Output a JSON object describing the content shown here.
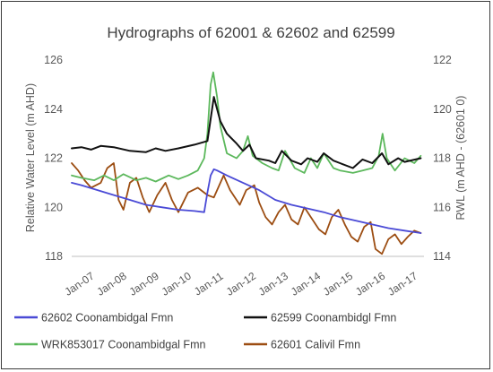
{
  "chart_data": {
    "type": "line",
    "title": "Hydrographs of 62001 & 62602 and 62599",
    "ylabel": "Relative Water Level (m AHD)",
    "y2label": "RWL (m AHD - (62601 0)",
    "ylim": [
      118,
      126
    ],
    "y2lim": [
      114,
      122
    ],
    "yticks": [
      "118",
      "120",
      "122",
      "124",
      "126"
    ],
    "y2ticks": [
      "114",
      "116",
      "118",
      "120",
      "122"
    ],
    "x_categories": [
      "Jan-07",
      "Jan-08",
      "Jan-09",
      "Jan-10",
      "Jan-11",
      "Jan-12",
      "Jan-13",
      "Jan-14",
      "Jan-15",
      "Jan-16",
      "Jan-17"
    ],
    "x_range": [
      2006.7,
      2017.6
    ],
    "grid": false,
    "legend_position": "bottom",
    "series": [
      {
        "name": "62602 Coonambidgal Fmn",
        "axis": "left",
        "color": "#4a4ad6",
        "points": [
          [
            2006.7,
            121.0
          ],
          [
            2007.0,
            120.9
          ],
          [
            2007.5,
            120.7
          ],
          [
            2008.0,
            120.5
          ],
          [
            2008.5,
            120.3
          ],
          [
            2009.0,
            120.1
          ],
          [
            2009.5,
            120.0
          ],
          [
            2010.0,
            119.9
          ],
          [
            2010.5,
            119.85
          ],
          [
            2010.8,
            119.8
          ],
          [
            2010.9,
            120.6
          ],
          [
            2011.0,
            121.3
          ],
          [
            2011.1,
            121.55
          ],
          [
            2011.2,
            121.5
          ],
          [
            2011.5,
            121.3
          ],
          [
            2012.0,
            121.0
          ],
          [
            2012.5,
            120.7
          ],
          [
            2013.0,
            120.3
          ],
          [
            2013.5,
            120.1
          ],
          [
            2014.0,
            119.95
          ],
          [
            2014.5,
            119.8
          ],
          [
            2015.0,
            119.6
          ],
          [
            2015.5,
            119.45
          ],
          [
            2016.0,
            119.3
          ],
          [
            2016.5,
            119.15
          ],
          [
            2017.0,
            119.05
          ],
          [
            2017.5,
            118.95
          ]
        ]
      },
      {
        "name": "62599 Coonambidgl Fmn",
        "axis": "left",
        "color": "#111111",
        "points": [
          [
            2006.7,
            122.4
          ],
          [
            2007.0,
            122.45
          ],
          [
            2007.3,
            122.35
          ],
          [
            2007.6,
            122.5
          ],
          [
            2008.0,
            122.45
          ],
          [
            2008.5,
            122.3
          ],
          [
            2009.0,
            122.25
          ],
          [
            2009.3,
            122.4
          ],
          [
            2009.6,
            122.3
          ],
          [
            2010.0,
            122.4
          ],
          [
            2010.5,
            122.55
          ],
          [
            2010.9,
            122.7
          ],
          [
            2011.0,
            123.6
          ],
          [
            2011.1,
            124.5
          ],
          [
            2011.2,
            124.0
          ],
          [
            2011.3,
            123.5
          ],
          [
            2011.5,
            123.0
          ],
          [
            2011.8,
            122.6
          ],
          [
            2012.0,
            122.3
          ],
          [
            2012.2,
            122.55
          ],
          [
            2012.4,
            122.0
          ],
          [
            2012.8,
            121.9
          ],
          [
            2013.0,
            121.8
          ],
          [
            2013.2,
            122.3
          ],
          [
            2013.5,
            121.9
          ],
          [
            2013.8,
            121.75
          ],
          [
            2014.0,
            122.0
          ],
          [
            2014.3,
            121.85
          ],
          [
            2014.5,
            122.2
          ],
          [
            2014.8,
            121.9
          ],
          [
            2015.0,
            121.8
          ],
          [
            2015.4,
            121.6
          ],
          [
            2015.7,
            121.95
          ],
          [
            2016.0,
            121.8
          ],
          [
            2016.3,
            122.2
          ],
          [
            2016.5,
            121.75
          ],
          [
            2016.8,
            122.0
          ],
          [
            2017.0,
            121.85
          ],
          [
            2017.5,
            122.0
          ]
        ]
      },
      {
        "name": "WRK853017 Coonambidgal Fmn",
        "axis": "left",
        "color": "#5cb85c",
        "points": [
          [
            2006.7,
            121.3
          ],
          [
            2007.0,
            121.2
          ],
          [
            2007.4,
            121.1
          ],
          [
            2007.7,
            121.3
          ],
          [
            2008.0,
            121.1
          ],
          [
            2008.3,
            121.35
          ],
          [
            2008.7,
            121.1
          ],
          [
            2009.0,
            121.2
          ],
          [
            2009.3,
            121.05
          ],
          [
            2009.7,
            121.3
          ],
          [
            2010.0,
            121.15
          ],
          [
            2010.3,
            121.3
          ],
          [
            2010.6,
            121.5
          ],
          [
            2010.8,
            122.0
          ],
          [
            2010.9,
            123.0
          ],
          [
            2011.0,
            125.0
          ],
          [
            2011.08,
            125.5
          ],
          [
            2011.2,
            124.5
          ],
          [
            2011.3,
            123.3
          ],
          [
            2011.5,
            122.2
          ],
          [
            2011.8,
            122.0
          ],
          [
            2012.0,
            122.3
          ],
          [
            2012.15,
            122.9
          ],
          [
            2012.3,
            122.1
          ],
          [
            2012.6,
            121.8
          ],
          [
            2012.9,
            121.6
          ],
          [
            2013.1,
            121.5
          ],
          [
            2013.3,
            122.3
          ],
          [
            2013.6,
            121.6
          ],
          [
            2013.9,
            121.4
          ],
          [
            2014.1,
            122.0
          ],
          [
            2014.3,
            121.6
          ],
          [
            2014.5,
            122.2
          ],
          [
            2014.8,
            121.6
          ],
          [
            2015.0,
            121.5
          ],
          [
            2015.4,
            121.4
          ],
          [
            2015.7,
            121.5
          ],
          [
            2016.0,
            121.6
          ],
          [
            2016.2,
            122.1
          ],
          [
            2016.32,
            123.0
          ],
          [
            2016.45,
            122.0
          ],
          [
            2016.7,
            121.5
          ],
          [
            2017.0,
            122.0
          ],
          [
            2017.3,
            121.8
          ],
          [
            2017.5,
            122.1
          ]
        ]
      },
      {
        "name": "62601 Calivil Fmn",
        "axis": "right",
        "color": "#9c4d12",
        "points": [
          [
            2006.7,
            117.8
          ],
          [
            2006.9,
            117.5
          ],
          [
            2007.1,
            117.1
          ],
          [
            2007.3,
            116.8
          ],
          [
            2007.6,
            117.0
          ],
          [
            2007.8,
            117.6
          ],
          [
            2008.0,
            117.8
          ],
          [
            2008.15,
            116.3
          ],
          [
            2008.3,
            115.9
          ],
          [
            2008.5,
            117.0
          ],
          [
            2008.7,
            117.2
          ],
          [
            2008.9,
            116.4
          ],
          [
            2009.1,
            115.8
          ],
          [
            2009.35,
            116.5
          ],
          [
            2009.6,
            117.0
          ],
          [
            2009.8,
            116.3
          ],
          [
            2010.0,
            115.8
          ],
          [
            2010.3,
            116.6
          ],
          [
            2010.6,
            116.8
          ],
          [
            2010.9,
            116.5
          ],
          [
            2011.1,
            116.4
          ],
          [
            2011.4,
            117.3
          ],
          [
            2011.6,
            116.7
          ],
          [
            2011.9,
            116.1
          ],
          [
            2012.1,
            116.7
          ],
          [
            2012.35,
            116.9
          ],
          [
            2012.5,
            116.2
          ],
          [
            2012.7,
            115.6
          ],
          [
            2012.9,
            115.3
          ],
          [
            2013.1,
            115.8
          ],
          [
            2013.3,
            116.1
          ],
          [
            2013.5,
            115.5
          ],
          [
            2013.7,
            115.3
          ],
          [
            2013.9,
            116.0
          ],
          [
            2014.1,
            115.6
          ],
          [
            2014.35,
            115.1
          ],
          [
            2014.55,
            114.9
          ],
          [
            2014.75,
            115.6
          ],
          [
            2014.95,
            115.9
          ],
          [
            2015.15,
            115.3
          ],
          [
            2015.35,
            114.8
          ],
          [
            2015.55,
            114.6
          ],
          [
            2015.75,
            115.2
          ],
          [
            2015.95,
            115.4
          ],
          [
            2016.1,
            114.3
          ],
          [
            2016.3,
            114.1
          ],
          [
            2016.5,
            114.7
          ],
          [
            2016.7,
            114.9
          ],
          [
            2016.9,
            114.5
          ],
          [
            2017.1,
            114.8
          ],
          [
            2017.3,
            115.05
          ],
          [
            2017.5,
            114.95
          ]
        ]
      }
    ]
  }
}
